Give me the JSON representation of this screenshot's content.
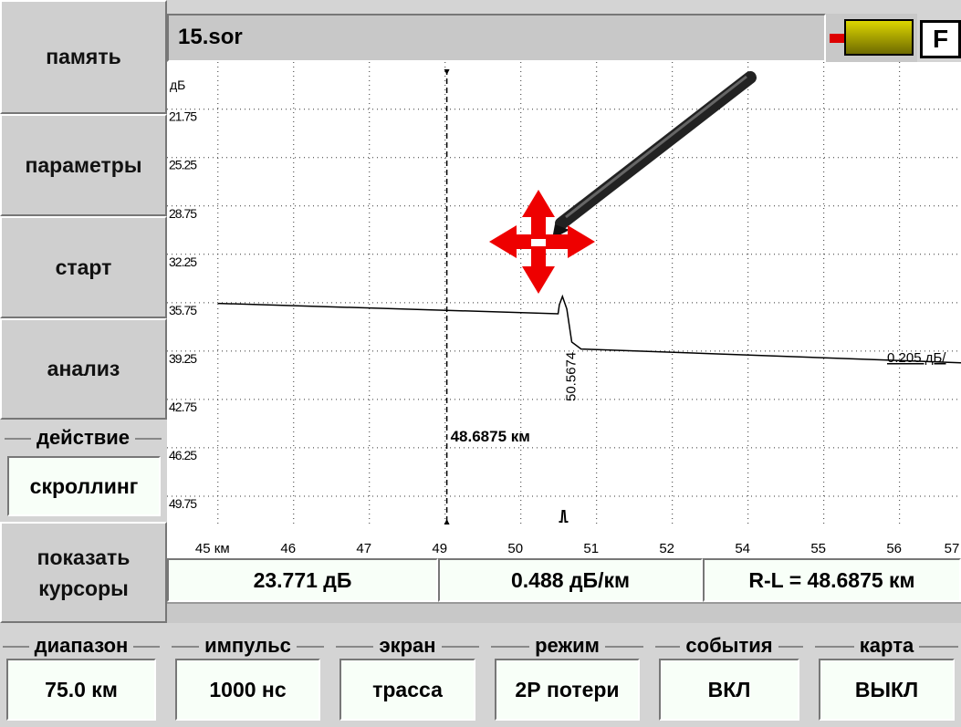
{
  "sidebar": {
    "buttons": [
      "память",
      "параметры",
      "старт",
      "анализ"
    ],
    "action_label": "действие",
    "action_value": "скроллинг",
    "cursors_button": "показать курсоры"
  },
  "header": {
    "title": "15.sor",
    "flag": "F"
  },
  "chart_data": {
    "type": "line",
    "y_label": "дБ",
    "y_inverted": true,
    "x": [
      45.0,
      50.48,
      50.5,
      50.55,
      50.62,
      50.7,
      50.85,
      56.97
    ],
    "series": [
      {
        "color": "#000000",
        "values": [
          35.8,
          36.55,
          35.9,
          35.3,
          36.2,
          38.6,
          39.1,
          40.1
        ]
      }
    ],
    "xlim": [
      44.18,
      56.97
    ],
    "ylim": [
      18.8,
      51.8
    ],
    "xticks": [
      {
        "value": 45,
        "label": "45 км"
      },
      {
        "value": 46.22,
        "label": "46"
      },
      {
        "value": 47.44,
        "label": "47"
      },
      {
        "value": 48.66,
        "label": "49"
      },
      {
        "value": 49.88,
        "label": "50"
      },
      {
        "value": 51.1,
        "label": "51"
      },
      {
        "value": 52.32,
        "label": "52"
      },
      {
        "value": 53.54,
        "label": "54"
      },
      {
        "value": 54.76,
        "label": "55"
      },
      {
        "value": 55.98,
        "label": "56"
      },
      {
        "value": 57.2,
        "label": "57"
      }
    ],
    "yticks": [
      21.75,
      25.25,
      28.75,
      32.25,
      35.75,
      39.25,
      42.75,
      46.25,
      49.75
    ],
    "grid": true,
    "cursor": {
      "x": 48.6875,
      "label": "48.6875 км"
    },
    "event_x": 50.5674,
    "slope_label": "0.205 дБ/"
  },
  "readouts": [
    "23.771 дБ",
    "0.488 дБ/км",
    "R-L = 48.6875 км"
  ],
  "settings": [
    {
      "label": "диапазон",
      "value": "75.0 км"
    },
    {
      "label": "импульс",
      "value": "1000 нс"
    },
    {
      "label": "экран",
      "value": "трасса"
    },
    {
      "label": "режим",
      "value": "2Р потери"
    },
    {
      "label": "события",
      "value": "ВКЛ"
    },
    {
      "label": "карта",
      "value": "ВЫКЛ"
    }
  ]
}
